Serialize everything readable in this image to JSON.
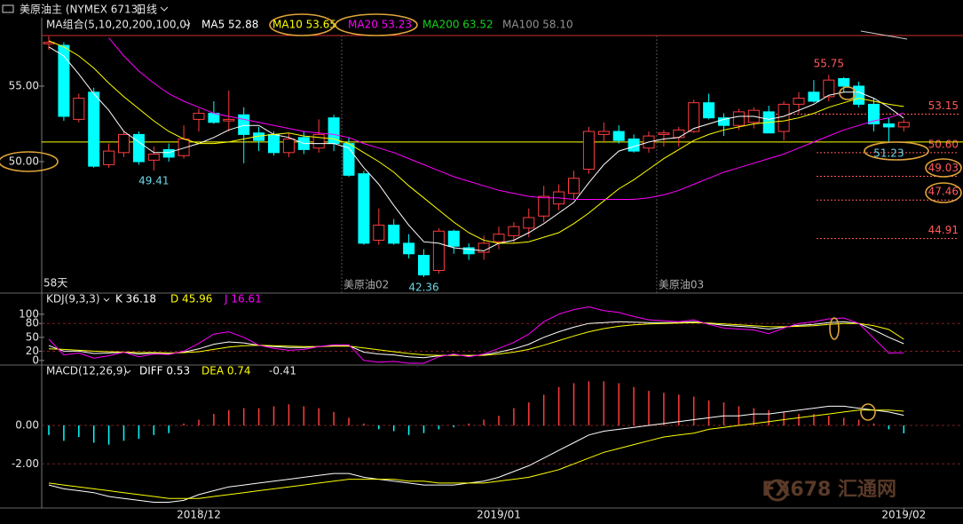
{
  "header": {
    "title": "美原油主 (NYMEX 6713)",
    "period": "日线",
    "watermark": "FX678 汇通网"
  },
  "chart_data": [
    {
      "type": "candlestick",
      "legend_title": "MA组合(5,10,20,200,100,0)",
      "categories": [
        null,
        null,
        null,
        null,
        null,
        null,
        null,
        null,
        null,
        null,
        null,
        null,
        null,
        null,
        null,
        null,
        null,
        null,
        null,
        null,
        "美原油02",
        null,
        null,
        null,
        null,
        null,
        null,
        null,
        null,
        null,
        null,
        null,
        null,
        null,
        null,
        null,
        null,
        null,
        null,
        null,
        null,
        "美原油03",
        null,
        null,
        null,
        null,
        null,
        null,
        null,
        null,
        null,
        null,
        null,
        null,
        null,
        null,
        null,
        null
      ],
      "open": [
        57.8,
        57.7,
        52.8,
        54.6,
        49.8,
        50.6,
        51.8,
        50.1,
        50.8,
        50.4,
        52.8,
        53.2,
        52.7,
        53.1,
        51.9,
        51.8,
        50.6,
        51.6,
        50.9,
        52.9,
        51.2,
        49.2,
        44.8,
        45.8,
        44.6,
        43.8,
        42.8,
        45.4,
        44.3,
        44.0,
        44.7,
        45.1,
        45.6,
        46.4,
        47.2,
        47.9,
        49.5,
        51.8,
        52.0,
        51.5,
        50.9,
        51.8,
        51.6,
        52.0,
        53.9,
        52.9,
        52.4,
        52.6,
        53.3,
        52.0,
        53.8,
        54.6,
        54.3,
        55.5,
        55.0,
        53.8,
        52.5,
        52.3
      ],
      "high": [
        58.3,
        57.9,
        54.5,
        54.9,
        51.2,
        52.0,
        52.0,
        51.0,
        51.2,
        52.4,
        53.5,
        54.0,
        54.7,
        53.6,
        52.3,
        52.0,
        51.9,
        52.0,
        52.8,
        53.1,
        51.6,
        49.4,
        46.9,
        46.2,
        45.2,
        44.2,
        45.6,
        45.5,
        44.6,
        45.1,
        45.7,
        46.0,
        46.9,
        48.4,
        48.5,
        49.4,
        52.3,
        52.6,
        52.4,
        51.8,
        52.0,
        52.1,
        52.3,
        54.1,
        54.5,
        53.2,
        53.5,
        53.6,
        53.7,
        54.0,
        54.6,
        55.4,
        55.75,
        55.6,
        55.3,
        54.2,
        52.9,
        52.8
      ],
      "low": [
        57.4,
        52.7,
        52.6,
        49.6,
        49.6,
        50.3,
        49.8,
        49.41,
        50.0,
        50.2,
        52.0,
        52.5,
        52.0,
        49.9,
        50.7,
        50.4,
        50.3,
        50.5,
        50.6,
        50.7,
        49.0,
        44.5,
        44.5,
        44.5,
        43.6,
        42.36,
        42.6,
        43.9,
        43.5,
        43.5,
        44.2,
        44.6,
        45.0,
        46.0,
        46.8,
        47.5,
        49.2,
        51.3,
        51.2,
        50.6,
        50.6,
        51.0,
        51.0,
        51.9,
        52.8,
        51.7,
        52.1,
        52.2,
        51.9,
        51.4,
        53.2,
        53.9,
        54.0,
        54.6,
        53.6,
        52.0,
        51.23,
        52.0
      ],
      "close": [
        57.9,
        53.0,
        54.2,
        49.7,
        50.7,
        51.8,
        50.0,
        50.5,
        50.3,
        51.5,
        53.2,
        52.6,
        52.8,
        51.8,
        51.4,
        50.6,
        51.5,
        50.8,
        51.8,
        51.2,
        49.1,
        44.6,
        45.8,
        44.6,
        43.9,
        42.5,
        45.4,
        44.4,
        43.9,
        44.6,
        45.2,
        45.7,
        46.3,
        47.7,
        48.0,
        48.9,
        52.0,
        52.0,
        51.4,
        50.7,
        51.7,
        51.9,
        52.1,
        53.9,
        52.9,
        52.4,
        53.3,
        53.4,
        51.9,
        53.8,
        54.2,
        54.0,
        55.4,
        55.0,
        53.8,
        52.5,
        52.3,
        52.6
      ],
      "up_color": "#ff3c3c",
      "down_color": "#00ffff",
      "series": [
        {
          "name": "MA5 52.88",
          "color": "#ffffff",
          "values": [
            57.6,
            57.0,
            55.8,
            54.5,
            53.4,
            52.0,
            51.3,
            50.6,
            50.6,
            50.9,
            51.2,
            51.6,
            52.1,
            52.4,
            52.4,
            51.8,
            51.6,
            51.2,
            51.2,
            51.2,
            50.9,
            49.6,
            48.5,
            47.1,
            45.8,
            44.7,
            44.6,
            44.3,
            44.2,
            44.1,
            44.6,
            44.8,
            45.3,
            45.9,
            46.6,
            47.3,
            48.6,
            49.8,
            50.7,
            51.0,
            51.3,
            51.5,
            51.6,
            52.2,
            52.5,
            52.8,
            53.0,
            53.0,
            52.8,
            53.0,
            53.4,
            53.8,
            54.4,
            54.6,
            54.6,
            54.2,
            53.6,
            52.88
          ]
        },
        {
          "name": "MA10 53.65",
          "color": "#ffff00",
          "values": [
            58.0,
            57.6,
            57.0,
            56.2,
            55.2,
            54.3,
            53.5,
            52.7,
            52.0,
            51.5,
            51.2,
            51.2,
            51.3,
            51.5,
            51.7,
            51.8,
            51.9,
            51.7,
            51.6,
            51.5,
            51.2,
            50.6,
            50.0,
            49.3,
            48.4,
            47.6,
            46.8,
            46.0,
            45.3,
            44.8,
            44.6,
            44.6,
            44.7,
            45.0,
            45.3,
            45.9,
            46.6,
            47.4,
            48.2,
            48.8,
            49.5,
            50.2,
            50.8,
            51.4,
            51.8,
            52.1,
            52.3,
            52.5,
            52.6,
            52.7,
            52.9,
            53.2,
            53.6,
            53.9,
            54.2,
            54.0,
            53.8,
            53.65
          ]
        },
        {
          "name": "MA20 53.23",
          "color": "#ff00ff",
          "values": [
            null,
            null,
            null,
            null,
            58.2,
            57.0,
            56.0,
            55.2,
            54.5,
            54.0,
            53.6,
            53.2,
            53.0,
            52.8,
            52.6,
            52.4,
            52.2,
            52.0,
            51.9,
            51.8,
            51.6,
            51.2,
            50.9,
            50.6,
            50.2,
            49.8,
            49.4,
            49.0,
            48.7,
            48.4,
            48.1,
            47.9,
            47.7,
            47.6,
            47.6,
            47.5,
            47.5,
            47.5,
            47.5,
            47.5,
            47.6,
            47.8,
            48.1,
            48.5,
            48.9,
            49.3,
            49.6,
            49.9,
            50.2,
            50.5,
            50.9,
            51.3,
            51.7,
            52.1,
            52.4,
            52.7,
            52.9,
            53.23
          ]
        }
      ],
      "legend_extra": [
        {
          "name": "MA200 63.52",
          "color": "#19d219"
        },
        {
          "name": "MA100 58.10",
          "color": "#909090"
        }
      ],
      "ylim": [
        41.3,
        58.35
      ],
      "yticks": [
        {
          "value": 55,
          "label": "55.00"
        },
        {
          "value": 50,
          "label": "50.00"
        }
      ],
      "levels": [
        53.15,
        {
          "value": 50.6,
          "label": "50.60"
        },
        49.03,
        47.46,
        44.91
      ],
      "level_color": "#ff5a5a",
      "extreme_labels": [
        55.75,
        49.41,
        42.36,
        51.23
      ],
      "horizontal_line": 51.3,
      "period_label": "58天"
    },
    {
      "type": "line",
      "title": "KDJ(9,3,3)",
      "series": [
        {
          "name": "K 36.18",
          "color": "#ffffff",
          "values": [
            32,
            20,
            20,
            15,
            16,
            18,
            14,
            16,
            15,
            18,
            25,
            35,
            40,
            38,
            33,
            30,
            28,
            28,
            30,
            32,
            32,
            18,
            14,
            12,
            8,
            6,
            10,
            12,
            10,
            12,
            18,
            25,
            35,
            50,
            62,
            72,
            80,
            82,
            84,
            83,
            82,
            82,
            82,
            84,
            80,
            76,
            74,
            72,
            68,
            72,
            76,
            78,
            82,
            84,
            80,
            66,
            50,
            36.18
          ]
        },
        {
          "name": "D 45.96",
          "color": "#ffff00",
          "values": [
            25,
            24,
            22,
            20,
            19,
            18,
            17,
            17,
            16,
            17,
            19,
            24,
            29,
            32,
            33,
            32,
            31,
            30,
            30,
            31,
            31,
            27,
            23,
            19,
            15,
            12,
            11,
            11,
            11,
            11,
            14,
            18,
            24,
            33,
            43,
            53,
            62,
            69,
            74,
            77,
            79,
            80,
            81,
            82,
            81,
            79,
            77,
            75,
            73,
            73,
            74,
            75,
            78,
            80,
            80,
            75,
            67,
            45.96
          ]
        },
        {
          "name": "J 16.61",
          "color": "#ff00ff",
          "values": [
            46,
            12,
            16,
            5,
            10,
            18,
            8,
            14,
            13,
            20,
            37,
            57,
            62,
            50,
            33,
            26,
            22,
            24,
            30,
            34,
            34,
            0,
            -4,
            -2,
            -6,
            -6,
            8,
            14,
            8,
            14,
            26,
            39,
            57,
            84,
            100,
            110,
            116,
            108,
            104,
            95,
            88,
            86,
            84,
            88,
            78,
            70,
            68,
            66,
            58,
            70,
            80,
            84,
            90,
            92,
            80,
            48,
            16,
            16.61
          ]
        }
      ],
      "ylim": [
        -8,
        117
      ],
      "yticks": [
        100,
        80,
        50,
        20,
        0
      ]
    },
    {
      "type": "macd",
      "title": "MACD(12,26,9)",
      "categories": [
        null,
        null,
        null,
        null,
        null,
        null,
        null,
        null,
        null,
        null,
        "2018/12",
        null,
        null,
        null,
        null,
        null,
        null,
        null,
        null,
        null,
        null,
        null,
        null,
        null,
        null,
        null,
        null,
        null,
        null,
        null,
        "2019/01",
        null,
        null,
        null,
        null,
        null,
        null,
        null,
        null,
        null,
        null,
        null,
        null,
        null,
        null,
        null,
        null,
        null,
        null,
        null,
        null,
        null,
        null,
        null,
        null,
        null,
        null,
        "2019/02"
      ],
      "series": [
        {
          "name": "DIFF 0.53",
          "color": "#ffffff",
          "values": [
            -3.1,
            -3.3,
            -3.4,
            -3.5,
            -3.7,
            -3.8,
            -3.9,
            -4.0,
            -4.0,
            -3.9,
            -3.6,
            -3.4,
            -3.2,
            -3.1,
            -3.0,
            -2.9,
            -2.8,
            -2.7,
            -2.6,
            -2.5,
            -2.5,
            -2.7,
            -2.8,
            -2.9,
            -3.0,
            -3.1,
            -3.1,
            -3.1,
            -3.0,
            -2.9,
            -2.7,
            -2.4,
            -2.1,
            -1.7,
            -1.3,
            -0.9,
            -0.5,
            -0.3,
            -0.2,
            -0.1,
            0.0,
            0.1,
            0.2,
            0.3,
            0.4,
            0.5,
            0.5,
            0.6,
            0.6,
            0.7,
            0.8,
            0.9,
            1.0,
            1.0,
            0.9,
            0.8,
            0.7,
            0.53
          ]
        },
        {
          "name": "DEA 0.74",
          "color": "#ffff00",
          "values": [
            -3.0,
            -3.1,
            -3.2,
            -3.3,
            -3.4,
            -3.5,
            -3.6,
            -3.7,
            -3.8,
            -3.8,
            -3.8,
            -3.7,
            -3.6,
            -3.5,
            -3.4,
            -3.3,
            -3.2,
            -3.1,
            -3.0,
            -2.9,
            -2.8,
            -2.8,
            -2.8,
            -2.8,
            -2.9,
            -2.9,
            -3.0,
            -3.0,
            -3.0,
            -3.0,
            -2.9,
            -2.8,
            -2.7,
            -2.5,
            -2.3,
            -2.0,
            -1.7,
            -1.4,
            -1.2,
            -1.0,
            -0.8,
            -0.6,
            -0.5,
            -0.4,
            -0.2,
            -0.1,
            0.0,
            0.1,
            0.2,
            0.3,
            0.4,
            0.5,
            0.6,
            0.7,
            0.8,
            0.8,
            0.8,
            0.74
          ]
        }
      ],
      "histogram": {
        "name": "-0.41",
        "values": [
          -0.5,
          -0.8,
          -0.6,
          -0.9,
          -1.0,
          -0.8,
          -0.7,
          -0.5,
          -0.4,
          0.1,
          0.3,
          0.6,
          0.8,
          0.9,
          0.9,
          1.0,
          1.1,
          1.0,
          0.9,
          0.7,
          0.4,
          0.1,
          -0.2,
          -0.3,
          -0.5,
          -0.4,
          -0.2,
          -0.1,
          0.1,
          0.3,
          0.5,
          0.9,
          1.2,
          1.6,
          2.0,
          2.2,
          2.3,
          2.3,
          2.2,
          2.0,
          1.8,
          1.7,
          1.6,
          1.5,
          1.3,
          1.2,
          1.0,
          0.9,
          0.8,
          0.7,
          0.6,
          0.6,
          0.5,
          0.4,
          0.3,
          0.1,
          -0.2,
          -0.41
        ]
      },
      "up_color": "#ff3c3c",
      "down_color": "#00ffff",
      "ylim": [
        -4.3,
        3.1
      ],
      "yticks": [
        {
          "value": 0,
          "label": "0.00"
        },
        {
          "value": -2,
          "label": "-2.00"
        }
      ]
    }
  ]
}
